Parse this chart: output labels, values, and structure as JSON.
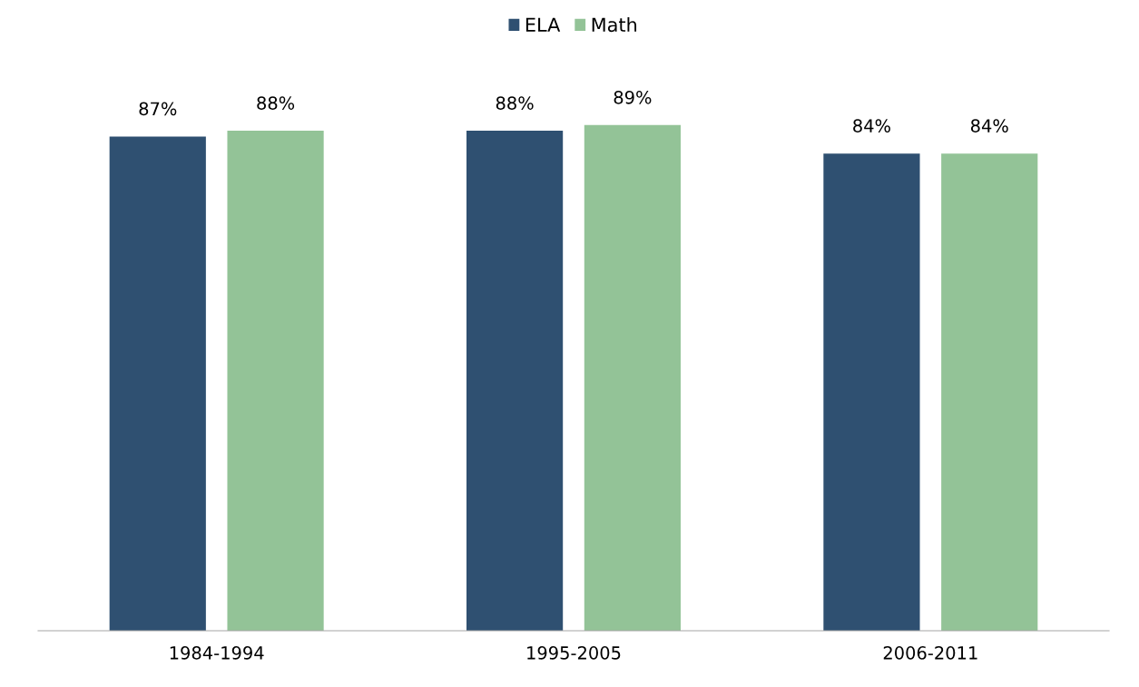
{
  "chart_data": {
    "type": "bar",
    "categories": [
      "1984-1994",
      "1995-2005",
      "2006-2011"
    ],
    "series": [
      {
        "name": "ELA",
        "color": "#2f5071",
        "values": [
          87,
          88,
          84
        ],
        "value_labels": [
          "87%",
          "88%",
          "84%"
        ]
      },
      {
        "name": "Math",
        "color": "#93c397",
        "values": [
          88,
          89,
          84
        ],
        "value_labels": [
          "88%",
          "89%",
          "84%"
        ]
      }
    ],
    "grid": false,
    "legend": "top"
  }
}
